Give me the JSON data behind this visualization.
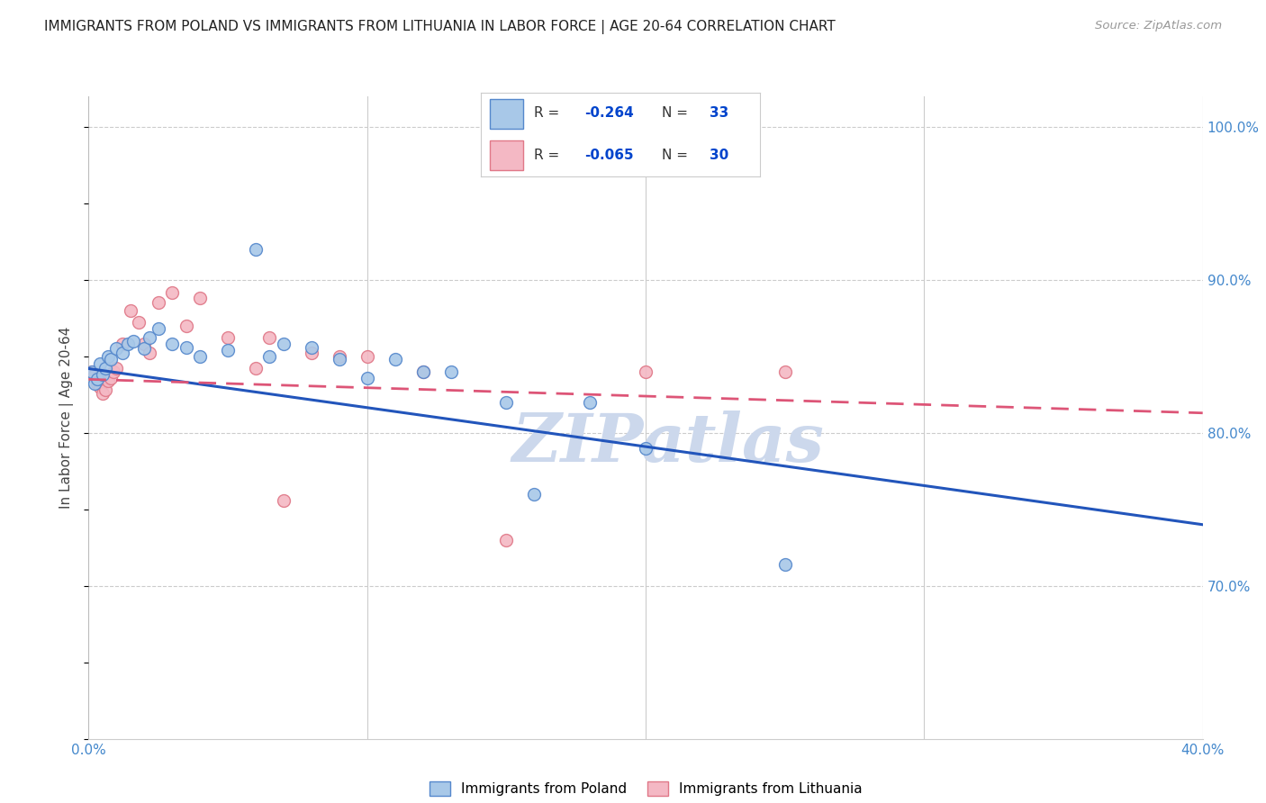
{
  "title": "IMMIGRANTS FROM POLAND VS IMMIGRANTS FROM LITHUANIA IN LABOR FORCE | AGE 20-64 CORRELATION CHART",
  "source": "Source: ZipAtlas.com",
  "ylabel": "In Labor Force | Age 20-64",
  "xlim": [
    0.0,
    0.4
  ],
  "ylim": [
    0.6,
    1.02
  ],
  "poland_color": "#a8c8e8",
  "poland_edge_color": "#5588cc",
  "lithuania_color": "#f4b8c4",
  "lithuania_edge_color": "#e07888",
  "poland_line_color": "#2255bb",
  "lithuania_line_color": "#dd5577",
  "poland_R": -0.264,
  "poland_N": 33,
  "lithuania_R": -0.065,
  "lithuania_N": 30,
  "poland_x": [
    0.001,
    0.002,
    0.003,
    0.004,
    0.005,
    0.006,
    0.007,
    0.008,
    0.01,
    0.012,
    0.014,
    0.016,
    0.02,
    0.022,
    0.025,
    0.03,
    0.035,
    0.04,
    0.05,
    0.06,
    0.065,
    0.07,
    0.08,
    0.09,
    0.1,
    0.11,
    0.12,
    0.13,
    0.15,
    0.16,
    0.18,
    0.2,
    0.25
  ],
  "poland_y": [
    0.84,
    0.832,
    0.835,
    0.845,
    0.838,
    0.842,
    0.85,
    0.848,
    0.855,
    0.852,
    0.858,
    0.86,
    0.855,
    0.862,
    0.868,
    0.858,
    0.856,
    0.85,
    0.854,
    0.92,
    0.85,
    0.858,
    0.856,
    0.848,
    0.836,
    0.848,
    0.84,
    0.84,
    0.82,
    0.76,
    0.82,
    0.79,
    0.714
  ],
  "lithuania_x": [
    0.001,
    0.002,
    0.003,
    0.004,
    0.005,
    0.006,
    0.007,
    0.008,
    0.009,
    0.01,
    0.012,
    0.015,
    0.018,
    0.02,
    0.022,
    0.025,
    0.03,
    0.035,
    0.04,
    0.05,
    0.06,
    0.065,
    0.07,
    0.08,
    0.09,
    0.1,
    0.12,
    0.15,
    0.2,
    0.25
  ],
  "lithuania_y": [
    0.84,
    0.838,
    0.832,
    0.83,
    0.826,
    0.828,
    0.834,
    0.836,
    0.84,
    0.842,
    0.858,
    0.88,
    0.872,
    0.858,
    0.852,
    0.885,
    0.892,
    0.87,
    0.888,
    0.862,
    0.842,
    0.862,
    0.756,
    0.852,
    0.85,
    0.85,
    0.84,
    0.73,
    0.84,
    0.84
  ],
  "background_color": "#ffffff",
  "grid_color": "#cccccc",
  "watermark_text": "ZIPatlas",
  "watermark_color": "#ccd8ec",
  "marker_size": 100
}
